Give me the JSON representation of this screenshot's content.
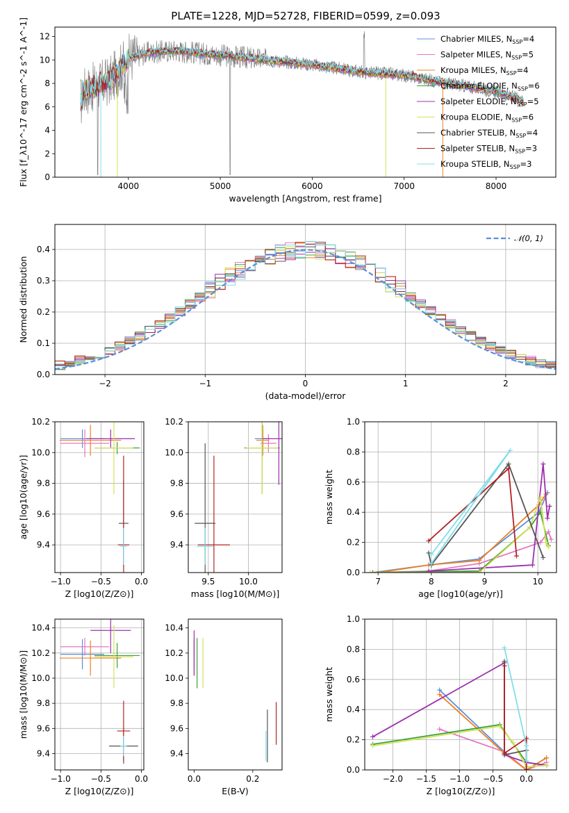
{
  "figure_title": "PLATE=1228, MJD=52728, FIBERID=0599, z=0.093",
  "colors": {
    "chabrier_miles": "#5b8fd8",
    "salpeter_miles": "#e377c2",
    "kroupa_miles": "#f07f1f",
    "chabrier_elodie": "#3aa03a",
    "salpeter_elodie": "#9b2fae",
    "kroupa_elodie": "#d4e157",
    "chabrier_stelib": "#555555",
    "salpeter_stelib": "#b22222",
    "kroupa_stelib": "#80deea",
    "data": "#808080",
    "normal": "#5b8fd8"
  },
  "chart_data": [
    {
      "id": "spectrum",
      "type": "line",
      "xlabel": "wavelength [Angstrom, rest frame]",
      "ylabel": "Flux [f_λ10^-17 erg cm^-2 s^-1 A^-1]",
      "xlim": [
        3200,
        8650
      ],
      "ylim": [
        0,
        12.8
      ],
      "xticks": [
        "4000",
        "5000",
        "6000",
        "7000",
        "8000"
      ],
      "yticks": [
        "0",
        "2",
        "4",
        "6",
        "8",
        "10",
        "12"
      ],
      "legend_placement": "upper-right",
      "legend": [
        "Chabrier MILES, N_SSP=4",
        "Salpeter MILES, N_SSP=5",
        "Kroupa MILES, N_SSP=4",
        "Chabrier ELODIE, N_SSP=6",
        "Salpeter ELODIE, N_SSP=5",
        "Kroupa ELODIE, N_SSP=6",
        "Chabrier STELIB, N_SSP=4",
        "Salpeter STELIB, N_SSP=3",
        "Kroupa STELIB, N_SSP=3"
      ],
      "continuum": [
        [
          3500,
          7.3
        ],
        [
          3600,
          7.6
        ],
        [
          3800,
          8.2
        ],
        [
          4000,
          10.1
        ],
        [
          4200,
          10.6
        ],
        [
          4500,
          10.8
        ],
        [
          5000,
          10.4
        ],
        [
          5500,
          10.0
        ],
        [
          6000,
          9.6
        ],
        [
          6500,
          9.0
        ],
        [
          7000,
          8.7
        ],
        [
          7400,
          8.1
        ],
        [
          7800,
          7.6
        ],
        [
          8000,
          7.3
        ],
        [
          8300,
          6.5
        ]
      ]
    },
    {
      "id": "residuals",
      "type": "step",
      "xlabel": "(data-model)/error",
      "ylabel": "Normed distribution",
      "xlim": [
        -2.5,
        2.5
      ],
      "ylim": [
        0,
        0.48
      ],
      "xticks": [
        "−2",
        "−1",
        "0",
        "1",
        "2"
      ],
      "yticks": [
        "0.0",
        "0.1",
        "0.2",
        "0.3",
        "0.4"
      ],
      "grid": true,
      "legend": [
        "𝒩(0, 1)"
      ],
      "legend_placement": "upper-right",
      "bin_width": 0.1
    },
    {
      "id": "age_vs_Z",
      "type": "errorbar",
      "xlabel": "Z [log10(Z/Z⊙)]",
      "ylabel": "age  [log10(age/yr)]",
      "xlim": [
        -1.07,
        0.03
      ],
      "ylim": [
        9.22,
        10.2
      ],
      "xticks": [
        "−1.0",
        "−0.5",
        "0.0"
      ],
      "yticks": [
        "9.4",
        "9.6",
        "9.8",
        "10.0",
        "10.2"
      ],
      "grid": true,
      "points": [
        {
          "x": -0.73,
          "y": 10.09,
          "xerr": 0.27,
          "yerr": 0.06,
          "series": "chabrier_miles"
        },
        {
          "x": -0.7,
          "y": 10.06,
          "xerr": 0.3,
          "yerr": 0.09,
          "series": "salpeter_miles"
        },
        {
          "x": -0.63,
          "y": 10.08,
          "xerr": 0.38,
          "yerr": 0.1,
          "series": "kroupa_miles"
        },
        {
          "x": -0.3,
          "y": 10.03,
          "xerr": 0.28,
          "yerr": 0.04,
          "series": "chabrier_elodie"
        },
        {
          "x": -0.38,
          "y": 10.09,
          "xerr": 0.3,
          "yerr": 0.06,
          "series": "salpeter_elodie"
        },
        {
          "x": -0.34,
          "y": 10.03,
          "xerr": 0.24,
          "yerr": 0.3,
          "series": "kroupa_elodie"
        },
        {
          "x": -0.22,
          "y": 9.54,
          "xerr": 0.06,
          "yerr": 0.28,
          "series": "chabrier_stelib"
        },
        {
          "x": -0.22,
          "y": 9.4,
          "xerr": 0.07,
          "yerr": 0.58,
          "series": "salpeter_stelib"
        },
        {
          "x": -0.22,
          "y": 9.39,
          "xerr": 0.04,
          "yerr": 0.12,
          "series": "kroupa_stelib"
        }
      ]
    },
    {
      "id": "age_vs_mass",
      "type": "errorbar",
      "xlabel": "mass [log10(M/M⊙)]",
      "ylabel": "",
      "xlim": [
        9.25,
        10.42
      ],
      "ylim": [
        9.22,
        10.2
      ],
      "xticks": [
        "9.5",
        "10.0"
      ],
      "yticks": [
        "9.4",
        "9.6",
        "9.8",
        "10.0",
        "10.2"
      ],
      "grid": true,
      "points": [
        {
          "x": 10.18,
          "y": 10.09,
          "xerr": 0.1,
          "yerr": 0.06,
          "series": "chabrier_miles"
        },
        {
          "x": 10.25,
          "y": 10.06,
          "xerr": 0.1,
          "yerr": 0.06,
          "series": "salpeter_miles"
        },
        {
          "x": 10.18,
          "y": 10.08,
          "xerr": 0.08,
          "yerr": 0.1,
          "series": "kroupa_miles"
        },
        {
          "x": 10.17,
          "y": 10.03,
          "xerr": 0.22,
          "yerr": 0.3,
          "series": "chabrier_elodie"
        },
        {
          "x": 10.38,
          "y": 10.09,
          "xerr": 0.22,
          "yerr": 0.3,
          "series": "salpeter_elodie"
        },
        {
          "x": 10.17,
          "y": 10.03,
          "xerr": 0.2,
          "yerr": 0.3,
          "series": "kroupa_elodie"
        },
        {
          "x": 9.46,
          "y": 9.54,
          "xerr": 0.13,
          "yerr": 0.52,
          "series": "chabrier_stelib"
        },
        {
          "x": 9.57,
          "y": 9.4,
          "xerr": 0.2,
          "yerr": 0.58,
          "series": "salpeter_stelib"
        },
        {
          "x": 9.46,
          "y": 9.39,
          "xerr": 0.1,
          "yerr": 0.12,
          "series": "kroupa_stelib"
        }
      ]
    },
    {
      "id": "weight_vs_age",
      "type": "line",
      "xlabel": "age  [log10(age/yr)]",
      "ylabel": "mass weight",
      "xlim": [
        6.75,
        10.35
      ],
      "ylim": [
        0,
        1.0
      ],
      "xticks": [
        "7",
        "8",
        "9",
        "10"
      ],
      "yticks": [
        "0.0",
        "0.2",
        "0.4",
        "0.6",
        "0.8",
        "1.0"
      ],
      "grid": true,
      "series": [
        {
          "key": "chabrier_miles",
          "points": [
            [
              6.9,
              0.0
            ],
            [
              7.95,
              0.05
            ],
            [
              8.9,
              0.09
            ],
            [
              10.02,
              0.4
            ],
            [
              10.18,
              0.53
            ]
          ]
        },
        {
          "key": "salpeter_miles",
          "points": [
            [
              6.9,
              0.0
            ],
            [
              7.95,
              0.01
            ],
            [
              8.9,
              0.06
            ],
            [
              10.05,
              0.2
            ],
            [
              10.2,
              0.27
            ],
            [
              10.25,
              0.22
            ]
          ]
        },
        {
          "key": "kroupa_miles",
          "points": [
            [
              7.0,
              0.0
            ],
            [
              7.95,
              0.05
            ],
            [
              8.9,
              0.08
            ],
            [
              10.02,
              0.45
            ],
            [
              10.15,
              0.52
            ]
          ]
        },
        {
          "key": "chabrier_elodie",
          "points": [
            [
              6.9,
              0.0
            ],
            [
              8.9,
              0.01
            ],
            [
              9.85,
              0.3
            ],
            [
              10.05,
              0.4
            ],
            [
              10.2,
              0.18
            ]
          ]
        },
        {
          "key": "salpeter_elodie",
          "points": [
            [
              7.95,
              0.01
            ],
            [
              9.9,
              0.05
            ],
            [
              10.1,
              0.72
            ],
            [
              10.18,
              0.36
            ],
            [
              10.22,
              0.44
            ]
          ]
        },
        {
          "key": "kroupa_elodie",
          "points": [
            [
              6.85,
              0.0
            ],
            [
              8.9,
              0.0
            ],
            [
              9.85,
              0.3
            ],
            [
              10.05,
              0.5
            ],
            [
              10.15,
              0.2
            ],
            [
              10.2,
              0.17
            ]
          ]
        },
        {
          "key": "chabrier_stelib",
          "points": [
            [
              7.95,
              0.13
            ],
            [
              8.0,
              0.05
            ],
            [
              9.45,
              0.72
            ],
            [
              10.1,
              0.1
            ]
          ]
        },
        {
          "key": "salpeter_stelib",
          "points": [
            [
              7.95,
              0.21
            ],
            [
              9.45,
              0.69
            ],
            [
              9.6,
              0.11
            ]
          ]
        },
        {
          "key": "kroupa_stelib",
          "points": [
            [
              8.0,
              0.06
            ],
            [
              9.48,
              0.81
            ],
            [
              8.0,
              0.12
            ]
          ]
        }
      ]
    },
    {
      "id": "mass_vs_Z",
      "type": "errorbar",
      "xlabel": "Z [log10(Z/Z⊙)]",
      "ylabel": "mass [log10(M/M⊙)]",
      "xlim": [
        -1.07,
        0.03
      ],
      "ylim": [
        9.27,
        10.47
      ],
      "xticks": [
        "−1.0",
        "−0.5",
        "0.0"
      ],
      "yticks": [
        "9.4",
        "9.6",
        "9.8",
        "10.0",
        "10.2",
        "10.4"
      ],
      "grid": true,
      "points": [
        {
          "x": -0.73,
          "y": 10.19,
          "xerr": 0.27,
          "yerr": 0.12,
          "series": "chabrier_miles"
        },
        {
          "x": -0.7,
          "y": 10.25,
          "xerr": 0.3,
          "yerr": 0.07,
          "series": "salpeter_miles"
        },
        {
          "x": -0.63,
          "y": 10.16,
          "xerr": 0.38,
          "yerr": 0.14,
          "series": "kroupa_miles"
        },
        {
          "x": -0.3,
          "y": 10.18,
          "xerr": 0.28,
          "yerr": 0.1,
          "series": "chabrier_elodie"
        },
        {
          "x": -0.38,
          "y": 10.38,
          "xerr": 0.25,
          "yerr": 0.18,
          "series": "salpeter_elodie"
        },
        {
          "x": -0.34,
          "y": 10.17,
          "xerr": 0.24,
          "yerr": 0.25,
          "series": "kroupa_elodie"
        },
        {
          "x": -0.22,
          "y": 9.46,
          "xerr": 0.18,
          "yerr": 0.14,
          "series": "chabrier_stelib"
        },
        {
          "x": -0.22,
          "y": 9.58,
          "xerr": 0.08,
          "yerr": 0.24,
          "series": "salpeter_stelib"
        },
        {
          "x": -0.22,
          "y": 9.46,
          "xerr": 0.04,
          "yerr": 0.08,
          "series": "kroupa_stelib"
        }
      ]
    },
    {
      "id": "mass_vs_ebv",
      "type": "errorbar",
      "xlabel": "E(B-V)",
      "ylabel": "",
      "xlim": [
        -0.02,
        0.3
      ],
      "ylim": [
        9.27,
        10.47
      ],
      "xticks": [
        "0.0",
        "0.2"
      ],
      "yticks": [
        "9.4",
        "9.6",
        "9.8",
        "10.0",
        "10.2",
        "10.4"
      ],
      "points": [
        {
          "x": 0.0,
          "y": 10.19,
          "xerr": 0.0,
          "yerr": 0.12,
          "series": "chabrier_miles"
        },
        {
          "x": 0.0,
          "y": 10.25,
          "xerr": 0.0,
          "yerr": 0.07,
          "series": "salpeter_miles"
        },
        {
          "x": 0.0,
          "y": 10.16,
          "xerr": 0.0,
          "yerr": 0.14,
          "series": "kroupa_miles"
        },
        {
          "x": 0.01,
          "y": 10.12,
          "xerr": 0.0,
          "yerr": 0.2,
          "series": "chabrier_elodie"
        },
        {
          "x": 0.0,
          "y": 10.2,
          "xerr": 0.0,
          "yerr": 0.18,
          "series": "salpeter_elodie"
        },
        {
          "x": 0.03,
          "y": 10.12,
          "xerr": 0.0,
          "yerr": 0.2,
          "series": "kroupa_elodie"
        },
        {
          "x": 0.25,
          "y": 9.54,
          "xerr": 0.0,
          "yerr": 0.21,
          "series": "chabrier_stelib"
        },
        {
          "x": 0.28,
          "y": 9.64,
          "xerr": 0.0,
          "yerr": 0.17,
          "series": "salpeter_stelib"
        },
        {
          "x": 0.245,
          "y": 9.46,
          "xerr": 0.0,
          "yerr": 0.12,
          "series": "kroupa_stelib"
        }
      ]
    },
    {
      "id": "weight_vs_Z",
      "type": "line",
      "xlabel": "Z [log10(Z/Z⊙)]",
      "ylabel": "mass weight",
      "xlim": [
        -2.42,
        0.45
      ],
      "ylim": [
        0,
        1.0
      ],
      "xticks": [
        "−2.0",
        "−1.5",
        "−1.0",
        "−0.5",
        "0.0"
      ],
      "yticks": [
        "0.0",
        "0.2",
        "0.4",
        "0.6",
        "0.8",
        "1.0"
      ],
      "grid": true,
      "series": [
        {
          "key": "chabrier_miles",
          "points": [
            [
              -1.3,
              0.53
            ],
            [
              -0.33,
              0.12
            ],
            [
              0.0,
              0.0
            ],
            [
              0.3,
              0.08
            ]
          ]
        },
        {
          "key": "salpeter_miles",
          "points": [
            [
              -1.3,
              0.27
            ],
            [
              -0.33,
              0.12
            ],
            [
              0.0,
              0.0
            ],
            [
              0.3,
              0.05
            ]
          ]
        },
        {
          "key": "kroupa_miles",
          "points": [
            [
              -1.3,
              0.5
            ],
            [
              -0.33,
              0.11
            ],
            [
              0.0,
              0.0
            ],
            [
              0.3,
              0.08
            ]
          ]
        },
        {
          "key": "chabrier_elodie",
          "points": [
            [
              -2.3,
              0.17
            ],
            [
              -0.4,
              0.3
            ],
            [
              0.0,
              0.05
            ],
            [
              0.3,
              0.03
            ]
          ]
        },
        {
          "key": "salpeter_elodie",
          "points": [
            [
              -2.3,
              0.22
            ],
            [
              -0.33,
              0.71
            ],
            [
              -0.33,
              0.1
            ],
            [
              0.0,
              0.05
            ],
            [
              0.3,
              0.03
            ]
          ]
        },
        {
          "key": "kroupa_elodie",
          "points": [
            [
              -2.3,
              0.16
            ],
            [
              -0.4,
              0.29
            ],
            [
              -0.2,
              0.18
            ],
            [
              0.0,
              0.02
            ],
            [
              0.3,
              0.03
            ]
          ]
        },
        {
          "key": "chabrier_stelib",
          "points": [
            [
              -0.33,
              0.72
            ],
            [
              -0.33,
              0.1
            ],
            [
              0.0,
              0.13
            ],
            [
              0.0,
              0.0
            ]
          ]
        },
        {
          "key": "salpeter_stelib",
          "points": [
            [
              -0.33,
              0.69
            ],
            [
              -0.33,
              0.11
            ],
            [
              0.0,
              0.21
            ],
            [
              0.0,
              0.0
            ]
          ]
        },
        {
          "key": "kroupa_stelib",
          "points": [
            [
              -0.33,
              0.81
            ],
            [
              0.0,
              0.16
            ],
            [
              0.0,
              0.06
            ]
          ]
        }
      ]
    }
  ]
}
